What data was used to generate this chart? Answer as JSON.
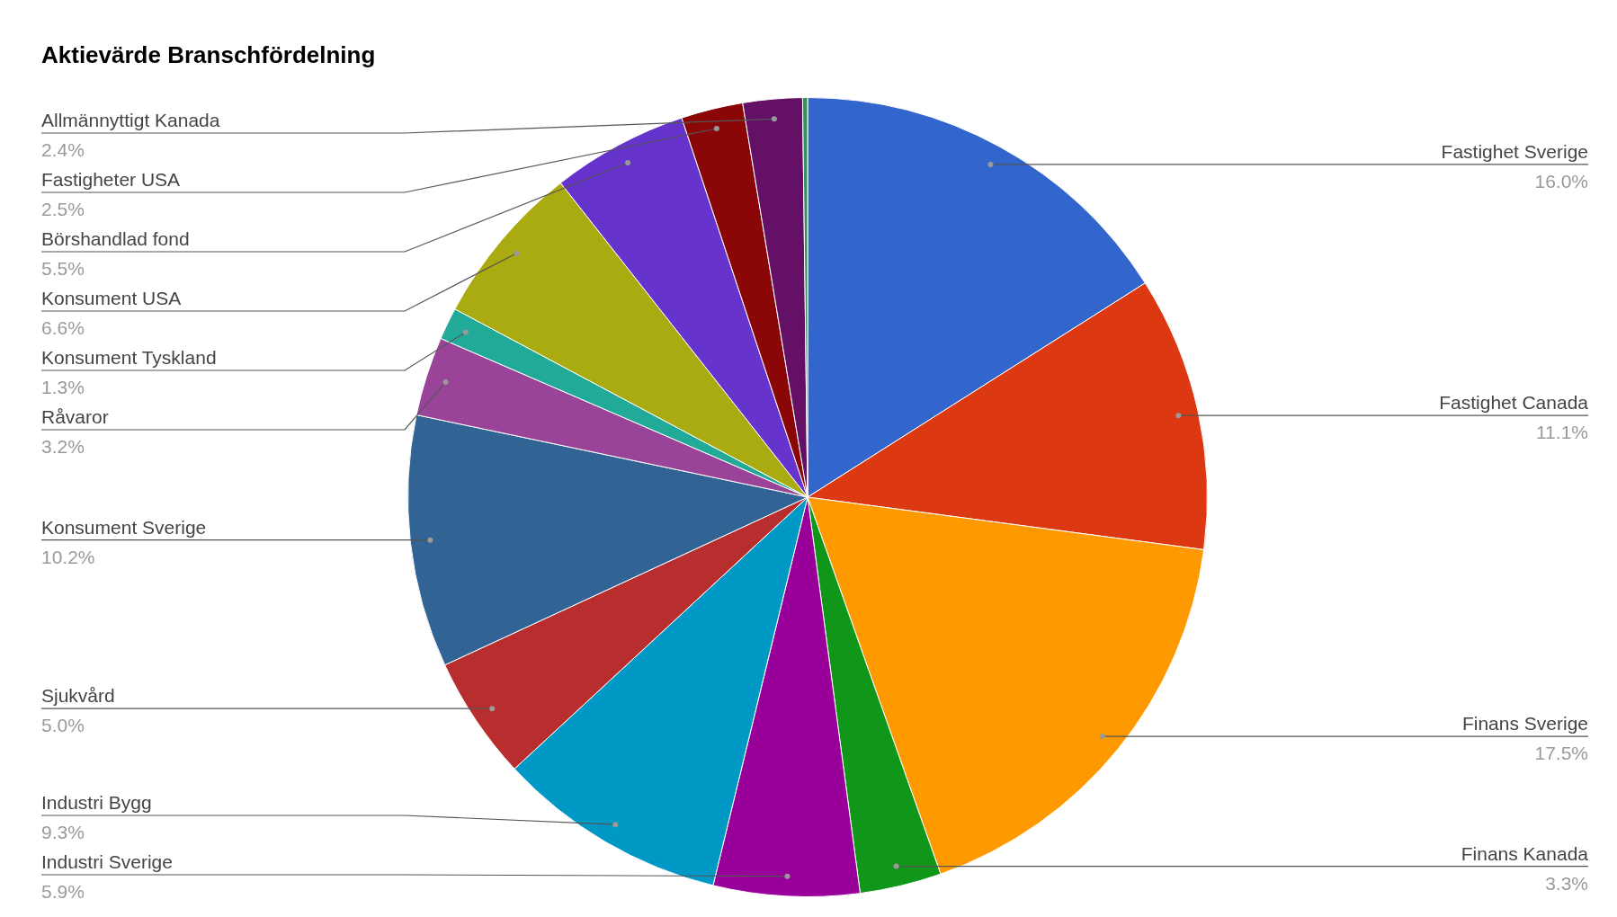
{
  "chart_data": {
    "type": "pie",
    "title": "Aktievärde Branschfördelning",
    "categories": [
      "Fastighet Sverige",
      "Fastighet Canada",
      "Finans Sverige",
      "Finans Kanada",
      "Industri Sverige",
      "Industri Bygg",
      "Sjukvård",
      "Konsument Sverige",
      "Råvaror",
      "Konsument Tyskland",
      "Konsument USA",
      "Börshandlad fond",
      "Fastigheter USA",
      "Allmännyttigt Kanada",
      null
    ],
    "values": [
      16.0,
      11.1,
      17.5,
      3.3,
      5.9,
      9.3,
      5.0,
      10.2,
      3.2,
      1.3,
      6.6,
      5.5,
      2.5,
      2.4,
      0.2
    ],
    "colors": [
      "#3366cc",
      "#dc3912",
      "#ff9900",
      "#109618",
      "#990099",
      "#0099c6",
      "#b82e2e",
      "#316395",
      "#994499",
      "#22aa99",
      "#aaaa11",
      "#6633cc",
      "#8b0707",
      "#651067",
      "#329262"
    ],
    "value_labels": [
      "16.0%",
      "11.1%",
      "17.5%",
      "3.3%",
      "5.9%",
      "9.3%",
      "5.0%",
      "10.2%",
      "3.2%",
      "1.3%",
      "6.6%",
      "5.5%",
      "2.5%",
      "2.4%",
      null
    ],
    "legend": false
  }
}
